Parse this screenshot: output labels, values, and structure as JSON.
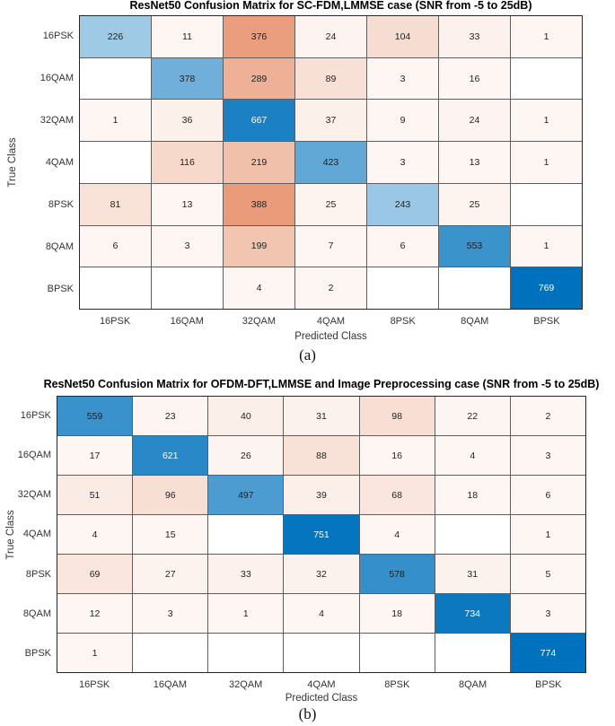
{
  "figures": [
    {
      "caption": "(a)",
      "chart_data": {
        "type": "heatmap",
        "title": "ResNet50 Confusion Matrix for SC-FDM,LMMSE case (SNR from -5 to 25dB)",
        "xlabel": "Predicted Class",
        "ylabel": "True Class",
        "classes": [
          "16PSK",
          "16QAM",
          "32QAM",
          "4QAM",
          "8PSK",
          "8QAM",
          "BPSK"
        ],
        "matrix": [
          [
            226,
            11,
            376,
            24,
            104,
            33,
            1
          ],
          [
            0,
            378,
            289,
            89,
            3,
            16,
            0
          ],
          [
            1,
            36,
            667,
            37,
            9,
            24,
            1
          ],
          [
            0,
            116,
            219,
            423,
            3,
            13,
            1
          ],
          [
            81,
            13,
            388,
            25,
            243,
            25,
            0
          ],
          [
            6,
            3,
            199,
            7,
            6,
            553,
            1
          ],
          [
            0,
            0,
            4,
            2,
            0,
            0,
            769
          ]
        ],
        "colors": {
          "diagonal": "#0072BD",
          "off_diagonal": "#D95319",
          "empty": "#FFFFFF",
          "grid_line": "#5e5e5e",
          "value_text": "#1f1f1f",
          "value_text_on_dark": "#FFFFFF"
        },
        "legend": "none",
        "grid": true
      }
    },
    {
      "caption": "(b)",
      "chart_data": {
        "type": "heatmap",
        "title": "ResNet50 Confusion Matrix for OFDM-DFT,LMMSE and Image Preprocessing case (SNR from -5 to 25dB)",
        "xlabel": "Predicted Class",
        "ylabel": "True Class",
        "classes": [
          "16PSK",
          "16QAM",
          "32QAM",
          "4QAM",
          "8PSK",
          "8QAM",
          "BPSK"
        ],
        "matrix": [
          [
            559,
            23,
            40,
            31,
            98,
            22,
            2
          ],
          [
            17,
            621,
            26,
            88,
            16,
            4,
            3
          ],
          [
            51,
            96,
            497,
            39,
            68,
            18,
            6
          ],
          [
            4,
            15,
            0,
            751,
            4,
            0,
            1
          ],
          [
            69,
            27,
            33,
            32,
            578,
            31,
            5
          ],
          [
            12,
            3,
            1,
            4,
            18,
            734,
            3
          ],
          [
            1,
            0,
            0,
            0,
            0,
            0,
            774
          ]
        ],
        "colors": {
          "diagonal": "#0072BD",
          "off_diagonal": "#D95319",
          "empty": "#FFFFFF",
          "grid_line": "#5e5e5e",
          "value_text": "#1f1f1f",
          "value_text_on_dark": "#FFFFFF"
        },
        "legend": "none",
        "grid": true
      }
    }
  ]
}
